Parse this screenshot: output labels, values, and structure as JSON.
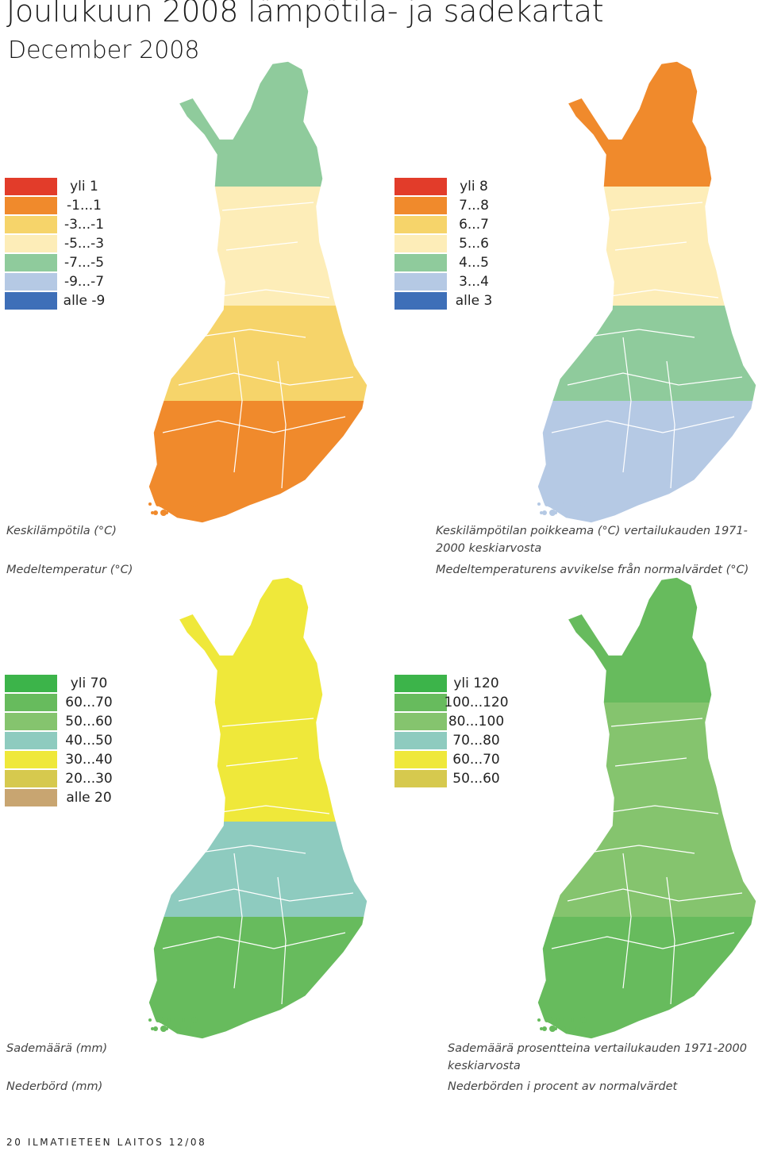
{
  "header": {
    "title": "Joulukuun  2008 lämpötila- ja sadekartat",
    "subtitle": "December 2008"
  },
  "maps": [
    {
      "id": "mean-temperature",
      "legend": [
        {
          "label": "yli 1",
          "color": "#e23c2a"
        },
        {
          "label": "-1...1",
          "color": "#f08a2c"
        },
        {
          "label": "-3...-1",
          "color": "#f6d46a"
        },
        {
          "label": "-5...-3",
          "color": "#fdedb8"
        },
        {
          "label": "-7...-5",
          "color": "#8fcb9c"
        },
        {
          "label": "-9...-7",
          "color": "#b5c9e4"
        },
        {
          "label": "alle -9",
          "color": "#3e6fb8"
        }
      ],
      "caption_fi": "Keskilämpötila (°C)",
      "caption_sv": "Medeltemperatur (°C)",
      "zones": [
        "#f08a2c",
        "#f6d46a",
        "#fdedb8",
        "#8fcb9c"
      ]
    },
    {
      "id": "temperature-anomaly",
      "legend": [
        {
          "label": "yli 8",
          "color": "#e23c2a"
        },
        {
          "label": "7...8",
          "color": "#f08a2c"
        },
        {
          "label": "6...7",
          "color": "#f6d46a"
        },
        {
          "label": "5...6",
          "color": "#fdedb8"
        },
        {
          "label": "4...5",
          "color": "#8fcb9c"
        },
        {
          "label": "3...4",
          "color": "#b5c9e4"
        },
        {
          "label": "alle 3",
          "color": "#3e6fb8"
        }
      ],
      "caption_fi": "Keskilämpötilan poikkeama (°C) vertailukauden 1971-2000 keskiarvosta",
      "caption_sv": "Medeltemperaturens avvikelse från normalvärdet (°C)",
      "zones": [
        "#b5c9e4",
        "#8fcb9c",
        "#fdedb8",
        "#f08a2c"
      ]
    },
    {
      "id": "precipitation",
      "legend": [
        {
          "label": "yli 70",
          "color": "#3cb44a"
        },
        {
          "label": "60...70",
          "color": "#67bb5d"
        },
        {
          "label": "50...60",
          "color": "#85c46e"
        },
        {
          "label": "40...50",
          "color": "#8ecbbf"
        },
        {
          "label": "30...40",
          "color": "#efe83a"
        },
        {
          "label": "20...30",
          "color": "#d6c94e"
        },
        {
          "label": "alle 20",
          "color": "#c8a571"
        }
      ],
      "caption_fi": "Sademäärä (mm)",
      "caption_sv": "Nederbörd (mm)",
      "zones": [
        "#67bb5d",
        "#8ecbbf",
        "#efe83a",
        "#efe83a"
      ]
    },
    {
      "id": "precipitation-percent",
      "legend": [
        {
          "label": "yli 120",
          "color": "#3cb44a"
        },
        {
          "label": "100...120",
          "color": "#67bb5d"
        },
        {
          "label": "80...100",
          "color": "#85c46e"
        },
        {
          "label": "70...80",
          "color": "#8ecbbf"
        },
        {
          "label": "60...70",
          "color": "#efe83a"
        },
        {
          "label": "50...60",
          "color": "#d6c94e"
        }
      ],
      "caption_fi": "Sademäärä prosentteina vertailukauden 1971-2000 keskiarvosta",
      "caption_sv": "Nederbörden i procent av normalvärdet",
      "zones": [
        "#67bb5d",
        "#85c46e",
        "#85c46e",
        "#67bb5d"
      ]
    }
  ],
  "footer": "20  ILMATIETEEN LAITOS 12/08"
}
